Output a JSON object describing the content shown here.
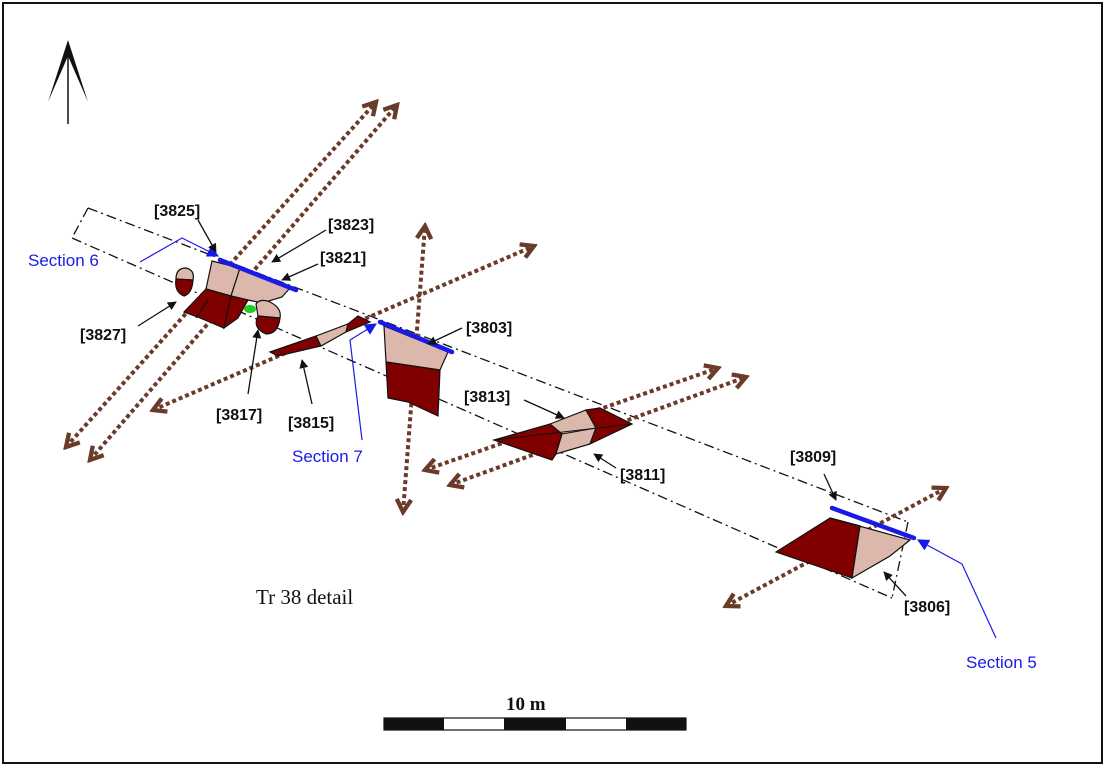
{
  "title": "Tr 38 detail",
  "scale_bar": {
    "label": "10 m"
  },
  "colors": {
    "fill_light": "#dbb8ab",
    "fill_dark": "#800000",
    "section_line": "#1a1ae6",
    "section_label": "#1a1ae6",
    "drain_arrow": "#6b3b2a",
    "feature_green": "#22cc22",
    "outline": "#111111"
  },
  "icons": {
    "north": "north-arrow-icon"
  },
  "contexts": {
    "c3825": "[3825]",
    "c3823": "[3823]",
    "c3821": "[3821]",
    "c3827": "[3827]",
    "c3817": "[3817]",
    "c3815": "[3815]",
    "c3803": "[3803]",
    "c3813": "[3813]",
    "c3811": "[3811]",
    "c3809": "[3809]",
    "c3806": "[3806]"
  },
  "sections": {
    "s5": "Section 5",
    "s6": "Section 6",
    "s7": "Section 7"
  }
}
